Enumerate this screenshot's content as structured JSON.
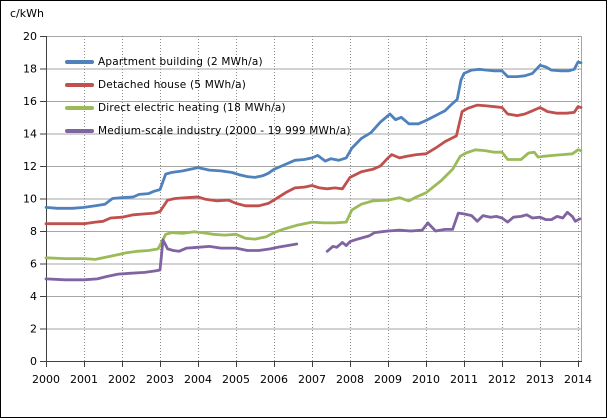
{
  "title": "c/kWh",
  "chart_data": {
    "type": "line",
    "title": "",
    "ylabel": "c/kWh",
    "xlabel": "",
    "ylim": [
      0,
      20
    ],
    "xlim": [
      2000,
      2014.08
    ],
    "grid": {
      "horizontal": "solid",
      "vertical": "dotted"
    },
    "legend_position": "top-left-inside",
    "y_ticks": [
      "0",
      "2",
      "4",
      "6",
      "8",
      "10",
      "12",
      "14",
      "16",
      "18",
      "20"
    ],
    "x_ticks": [
      "2000",
      "2001",
      "2002",
      "2003",
      "2004",
      "2005",
      "2006",
      "2007",
      "2008",
      "2009",
      "2010",
      "2011",
      "2012",
      "2013",
      "2014"
    ],
    "series": [
      {
        "name": "Apartment building (2 MWh/a)",
        "color": "#4F81BD",
        "segments": [
          [
            [
              2000.0,
              9.45
            ],
            [
              2000.3,
              9.4
            ],
            [
              2000.7,
              9.4
            ],
            [
              2001.0,
              9.45
            ],
            [
              2001.3,
              9.55
            ],
            [
              2001.55,
              9.65
            ],
            [
              2001.75,
              10.0
            ],
            [
              2002.0,
              10.05
            ],
            [
              2002.3,
              10.1
            ],
            [
              2002.45,
              10.25
            ],
            [
              2002.7,
              10.3
            ],
            [
              2002.85,
              10.45
            ],
            [
              2003.0,
              10.55
            ],
            [
              2003.15,
              11.5
            ],
            [
              2003.3,
              11.6
            ],
            [
              2003.6,
              11.7
            ],
            [
              2003.8,
              11.8
            ],
            [
              2004.0,
              11.9
            ],
            [
              2004.3,
              11.75
            ],
            [
              2004.6,
              11.7
            ],
            [
              2004.9,
              11.6
            ],
            [
              2005.1,
              11.45
            ],
            [
              2005.3,
              11.35
            ],
            [
              2005.5,
              11.3
            ],
            [
              2005.7,
              11.4
            ],
            [
              2005.85,
              11.55
            ],
            [
              2006.0,
              11.8
            ],
            [
              2006.3,
              12.1
            ],
            [
              2006.55,
              12.35
            ],
            [
              2006.8,
              12.4
            ],
            [
              2007.0,
              12.5
            ],
            [
              2007.15,
              12.65
            ],
            [
              2007.35,
              12.3
            ],
            [
              2007.5,
              12.45
            ],
            [
              2007.7,
              12.35
            ],
            [
              2007.9,
              12.5
            ],
            [
              2008.05,
              13.1
            ],
            [
              2008.3,
              13.7
            ],
            [
              2008.55,
              14.05
            ],
            [
              2008.8,
              14.7
            ],
            [
              2009.05,
              15.2
            ],
            [
              2009.2,
              14.85
            ],
            [
              2009.35,
              15.0
            ],
            [
              2009.55,
              14.6
            ],
            [
              2009.8,
              14.6
            ],
            [
              2010.0,
              14.8
            ],
            [
              2010.25,
              15.1
            ],
            [
              2010.5,
              15.4
            ],
            [
              2010.7,
              15.85
            ],
            [
              2010.82,
              16.1
            ],
            [
              2010.92,
              17.3
            ],
            [
              2011.0,
              17.7
            ],
            [
              2011.2,
              17.9
            ],
            [
              2011.4,
              17.95
            ],
            [
              2011.6,
              17.9
            ],
            [
              2011.8,
              17.85
            ],
            [
              2012.0,
              17.85
            ],
            [
              2012.15,
              17.5
            ],
            [
              2012.4,
              17.5
            ],
            [
              2012.6,
              17.55
            ],
            [
              2012.8,
              17.7
            ],
            [
              2013.0,
              18.2
            ],
            [
              2013.15,
              18.1
            ],
            [
              2013.3,
              17.9
            ],
            [
              2013.55,
              17.85
            ],
            [
              2013.75,
              17.85
            ],
            [
              2013.9,
              17.95
            ],
            [
              2014.0,
              18.4
            ],
            [
              2014.08,
              18.35
            ]
          ]
        ]
      },
      {
        "name": "Detached house (5 MWh/a)",
        "color": "#C0504D",
        "segments": [
          [
            [
              2000.0,
              8.45
            ],
            [
              2000.5,
              8.45
            ],
            [
              2001.0,
              8.45
            ],
            [
              2001.3,
              8.55
            ],
            [
              2001.5,
              8.6
            ],
            [
              2001.7,
              8.8
            ],
            [
              2002.0,
              8.85
            ],
            [
              2002.3,
              9.0
            ],
            [
              2002.6,
              9.05
            ],
            [
              2002.85,
              9.1
            ],
            [
              2003.0,
              9.2
            ],
            [
              2003.2,
              9.9
            ],
            [
              2003.4,
              10.0
            ],
            [
              2003.7,
              10.05
            ],
            [
              2004.0,
              10.1
            ],
            [
              2004.2,
              9.95
            ],
            [
              2004.5,
              9.85
            ],
            [
              2004.8,
              9.9
            ],
            [
              2005.0,
              9.7
            ],
            [
              2005.25,
              9.55
            ],
            [
              2005.6,
              9.55
            ],
            [
              2005.85,
              9.7
            ],
            [
              2006.0,
              9.9
            ],
            [
              2006.3,
              10.35
            ],
            [
              2006.55,
              10.65
            ],
            [
              2006.8,
              10.7
            ],
            [
              2007.0,
              10.8
            ],
            [
              2007.2,
              10.65
            ],
            [
              2007.4,
              10.6
            ],
            [
              2007.6,
              10.65
            ],
            [
              2007.8,
              10.6
            ],
            [
              2008.0,
              11.3
            ],
            [
              2008.3,
              11.65
            ],
            [
              2008.6,
              11.8
            ],
            [
              2008.8,
              12.0
            ],
            [
              2009.0,
              12.5
            ],
            [
              2009.1,
              12.7
            ],
            [
              2009.3,
              12.5
            ],
            [
              2009.5,
              12.6
            ],
            [
              2009.75,
              12.7
            ],
            [
              2010.0,
              12.75
            ],
            [
              2010.25,
              13.1
            ],
            [
              2010.5,
              13.5
            ],
            [
              2010.8,
              13.85
            ],
            [
              2010.95,
              15.35
            ],
            [
              2011.1,
              15.55
            ],
            [
              2011.35,
              15.75
            ],
            [
              2011.6,
              15.7
            ],
            [
              2011.8,
              15.65
            ],
            [
              2012.0,
              15.6
            ],
            [
              2012.15,
              15.2
            ],
            [
              2012.4,
              15.1
            ],
            [
              2012.6,
              15.2
            ],
            [
              2012.8,
              15.4
            ],
            [
              2013.0,
              15.6
            ],
            [
              2013.2,
              15.35
            ],
            [
              2013.45,
              15.25
            ],
            [
              2013.7,
              15.25
            ],
            [
              2013.9,
              15.3
            ],
            [
              2014.0,
              15.65
            ],
            [
              2014.08,
              15.6
            ]
          ]
        ]
      },
      {
        "name": "Direct electric heating (18 MWh/a)",
        "color": "#9BBB59",
        "segments": [
          [
            [
              2000.0,
              6.35
            ],
            [
              2000.5,
              6.3
            ],
            [
              2001.0,
              6.3
            ],
            [
              2001.3,
              6.25
            ],
            [
              2001.6,
              6.4
            ],
            [
              2001.9,
              6.55
            ],
            [
              2002.1,
              6.65
            ],
            [
              2002.4,
              6.75
            ],
            [
              2002.7,
              6.8
            ],
            [
              2002.95,
              6.9
            ],
            [
              2003.15,
              7.8
            ],
            [
              2003.3,
              7.9
            ],
            [
              2003.6,
              7.85
            ],
            [
              2003.9,
              7.95
            ],
            [
              2004.1,
              7.9
            ],
            [
              2004.4,
              7.8
            ],
            [
              2004.7,
              7.75
            ],
            [
              2005.0,
              7.8
            ],
            [
              2005.25,
              7.55
            ],
            [
              2005.5,
              7.5
            ],
            [
              2005.8,
              7.65
            ],
            [
              2006.0,
              7.9
            ],
            [
              2006.3,
              8.15
            ],
            [
              2006.6,
              8.35
            ],
            [
              2006.8,
              8.45
            ],
            [
              2007.0,
              8.55
            ],
            [
              2007.3,
              8.5
            ],
            [
              2007.6,
              8.5
            ],
            [
              2007.9,
              8.55
            ],
            [
              2008.05,
              9.3
            ],
            [
              2008.3,
              9.65
            ],
            [
              2008.6,
              9.85
            ],
            [
              2009.0,
              9.9
            ],
            [
              2009.3,
              10.05
            ],
            [
              2009.55,
              9.85
            ],
            [
              2009.75,
              10.1
            ],
            [
              2010.0,
              10.35
            ],
            [
              2010.4,
              11.1
            ],
            [
              2010.7,
              11.8
            ],
            [
              2010.9,
              12.6
            ],
            [
              2011.05,
              12.8
            ],
            [
              2011.3,
              13.0
            ],
            [
              2011.55,
              12.95
            ],
            [
              2011.8,
              12.85
            ],
            [
              2012.0,
              12.85
            ],
            [
              2012.15,
              12.4
            ],
            [
              2012.5,
              12.4
            ],
            [
              2012.7,
              12.8
            ],
            [
              2012.85,
              12.85
            ],
            [
              2012.95,
              12.55
            ],
            [
              2013.1,
              12.6
            ],
            [
              2013.35,
              12.65
            ],
            [
              2013.6,
              12.7
            ],
            [
              2013.85,
              12.75
            ],
            [
              2014.0,
              13.0
            ],
            [
              2014.08,
              12.95
            ]
          ]
        ]
      },
      {
        "name": "Medium-scale industry (2000 - 19 999 MWh/a)",
        "color": "#8064A2",
        "segments": [
          [
            [
              2000.0,
              5.05
            ],
            [
              2000.5,
              5.0
            ],
            [
              2001.0,
              5.0
            ],
            [
              2001.35,
              5.05
            ],
            [
              2001.6,
              5.2
            ],
            [
              2001.9,
              5.35
            ],
            [
              2002.2,
              5.4
            ],
            [
              2002.6,
              5.45
            ],
            [
              2002.9,
              5.55
            ],
            [
              2003.0,
              5.6
            ],
            [
              2003.08,
              7.45
            ],
            [
              2003.2,
              6.9
            ],
            [
              2003.35,
              6.8
            ],
            [
              2003.5,
              6.75
            ],
            [
              2003.7,
              6.95
            ],
            [
              2004.0,
              7.0
            ],
            [
              2004.3,
              7.05
            ],
            [
              2004.6,
              6.95
            ],
            [
              2005.0,
              6.95
            ],
            [
              2005.3,
              6.8
            ],
            [
              2005.6,
              6.8
            ],
            [
              2005.9,
              6.9
            ],
            [
              2006.1,
              7.0
            ],
            [
              2006.35,
              7.1
            ],
            [
              2006.6,
              7.2
            ]
          ],
          [
            [
              2007.4,
              6.75
            ],
            [
              2007.55,
              7.05
            ],
            [
              2007.65,
              7.0
            ],
            [
              2007.8,
              7.3
            ],
            [
              2007.9,
              7.1
            ],
            [
              2008.0,
              7.35
            ],
            [
              2008.2,
              7.5
            ],
            [
              2008.5,
              7.7
            ],
            [
              2008.65,
              7.9
            ],
            [
              2009.0,
              8.0
            ],
            [
              2009.3,
              8.05
            ],
            [
              2009.6,
              8.0
            ],
            [
              2009.9,
              8.05
            ],
            [
              2010.05,
              8.5
            ],
            [
              2010.25,
              8.0
            ],
            [
              2010.5,
              8.1
            ],
            [
              2010.7,
              8.1
            ],
            [
              2010.85,
              9.1
            ],
            [
              2011.0,
              9.05
            ],
            [
              2011.2,
              8.95
            ],
            [
              2011.35,
              8.6
            ],
            [
              2011.5,
              8.95
            ],
            [
              2011.7,
              8.85
            ],
            [
              2011.85,
              8.9
            ],
            [
              2012.0,
              8.8
            ],
            [
              2012.15,
              8.55
            ],
            [
              2012.3,
              8.85
            ],
            [
              2012.5,
              8.9
            ],
            [
              2012.65,
              9.0
            ],
            [
              2012.8,
              8.8
            ],
            [
              2013.0,
              8.85
            ],
            [
              2013.15,
              8.7
            ],
            [
              2013.3,
              8.7
            ],
            [
              2013.45,
              8.9
            ],
            [
              2013.6,
              8.8
            ],
            [
              2013.72,
              9.15
            ],
            [
              2013.85,
              8.9
            ],
            [
              2013.93,
              8.6
            ],
            [
              2014.05,
              8.75
            ]
          ]
        ]
      }
    ]
  }
}
